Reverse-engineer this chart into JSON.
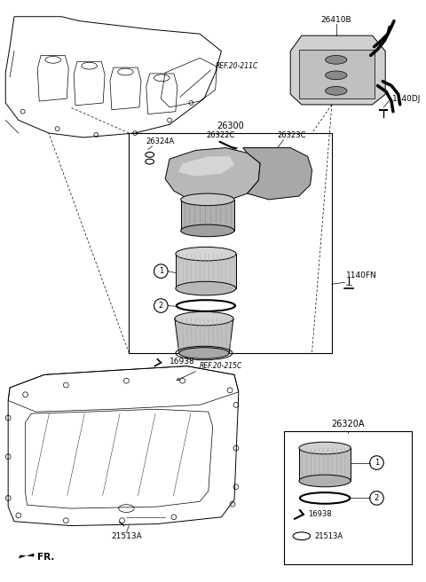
{
  "bg_color": "#ffffff",
  "black": "#000000",
  "gray1": "#aaaaaa",
  "gray2": "#888888",
  "gray3": "#cccccc",
  "gray4": "#d8d8d8",
  "labels": {
    "REF20_211C": "REF.20-211C",
    "26300": "26300",
    "26324A": "26324A",
    "26322C": "26322C",
    "26323C": "26323C",
    "26410B": "26410B",
    "1140DJ": "1140DJ",
    "1140FN": "1140FN",
    "16938": "16938",
    "REF20_215C": "REF.20-215C",
    "21513A": "21513A",
    "26320A": "26320A",
    "FR": "FR."
  }
}
